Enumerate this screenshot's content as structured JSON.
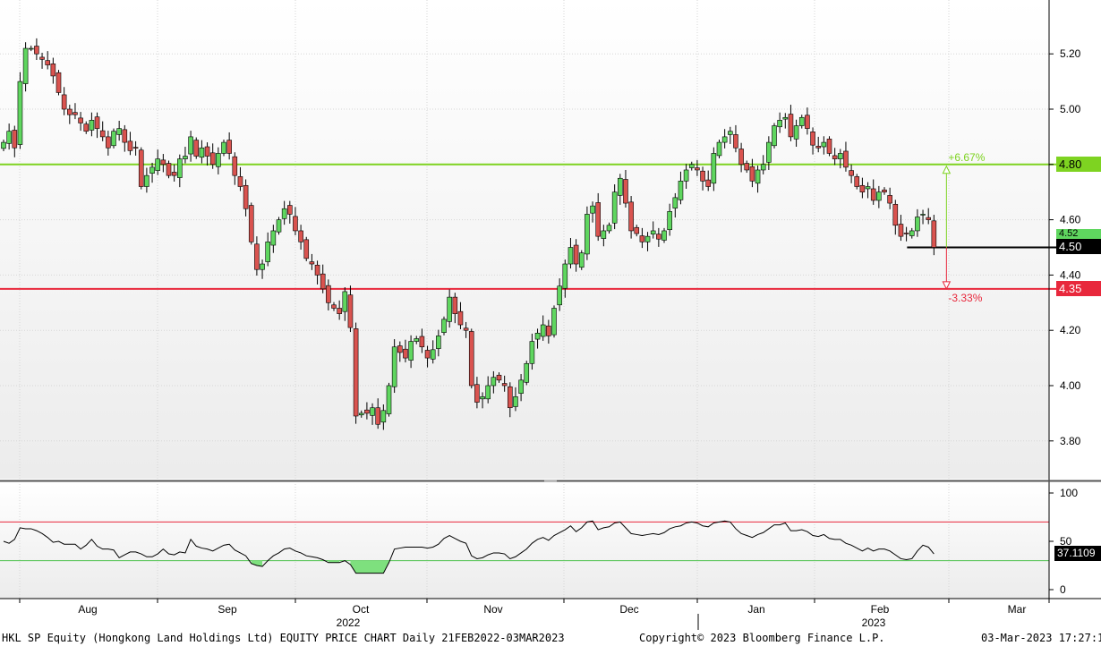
{
  "footer": {
    "left": "HKL SP Equity (Hongkong Land Holdings Ltd) EQUITY PRICE CHART  Daily 21FEB2022-03MAR2023",
    "center": "Copyright© 2023 Bloomberg Finance L.P.",
    "right": "03-Mar-2023 17:27:16"
  },
  "colors": {
    "up": "#5fd65f",
    "down": "#d9534f",
    "green_line": "#7ed321",
    "red_line": "#e8283c"
  },
  "chart_data": [
    {
      "type": "candlestick",
      "title": "",
      "ylim": [
        3.67,
        5.37
      ],
      "y_ticks": [
        3.8,
        4.0,
        4.2,
        4.4,
        4.6,
        4.8,
        5.0,
        5.2
      ],
      "y_tick_labels": [
        "3.80",
        "4.00",
        "4.20",
        "4.40",
        "4.60",
        "4.80",
        "5.00",
        "5.20"
      ],
      "x_month_labels": [
        "Aug",
        "Sep",
        "Oct",
        "Nov",
        "Dec",
        "Jan",
        "Feb",
        "Mar"
      ],
      "x_year_labels": [
        "2022",
        "2023"
      ],
      "grid": true,
      "last_price": "4.50",
      "last_price_value": 4.5,
      "partial_label": "4.52",
      "resistance": {
        "value": 4.8,
        "label": "4.80",
        "pct_label": "+6.67%"
      },
      "support": {
        "value": 4.35,
        "label": "4.35",
        "pct_label": "-3.33%"
      },
      "close": [
        4.88,
        4.92,
        4.86,
        5.1,
        5.22,
        5.22,
        5.2,
        5.18,
        5.16,
        5.12,
        5.06,
        5.0,
        4.98,
        4.98,
        4.95,
        4.92,
        4.96,
        4.93,
        4.9,
        4.86,
        4.92,
        4.93,
        4.88,
        4.85,
        4.86,
        4.72,
        4.76,
        4.79,
        4.82,
        4.8,
        4.76,
        4.76,
        4.82,
        4.83,
        4.9,
        4.83,
        4.86,
        4.83,
        4.8,
        4.84,
        4.88,
        4.84,
        4.76,
        4.72,
        4.64,
        4.52,
        4.42,
        4.44,
        4.52,
        4.56,
        4.6,
        4.64,
        4.62,
        4.56,
        4.52,
        4.46,
        4.44,
        4.4,
        4.35,
        4.3,
        4.28,
        4.26,
        4.34,
        4.21,
        3.89,
        3.9,
        3.9,
        3.92,
        3.86,
        3.91,
        4.0,
        4.14,
        4.12,
        4.1,
        4.16,
        4.17,
        4.14,
        4.1,
        4.13,
        4.18,
        4.24,
        4.32,
        4.26,
        4.22,
        4.2,
        4.0,
        3.94,
        3.96,
        4.0,
        4.03,
        4.02,
        4.0,
        3.92,
        3.96,
        4.02,
        4.08,
        4.16,
        4.19,
        4.22,
        4.18,
        4.28,
        4.36,
        4.44,
        4.5,
        4.44,
        4.48,
        4.62,
        4.65,
        4.54,
        4.56,
        4.58,
        4.7,
        4.75,
        4.66,
        4.56,
        4.55,
        4.52,
        4.54,
        4.56,
        4.53,
        4.56,
        4.63,
        4.68,
        4.74,
        4.78,
        4.8,
        4.78,
        4.74,
        4.72,
        4.84,
        4.88,
        4.9,
        4.92,
        4.86,
        4.8,
        4.78,
        4.74,
        4.78,
        4.8,
        4.88,
        4.94,
        4.96,
        4.97,
        4.9,
        4.94,
        4.97,
        4.93,
        4.87,
        4.86,
        4.88,
        4.84,
        4.82,
        4.84,
        4.79,
        4.76,
        4.72,
        4.7,
        4.72,
        4.67,
        4.7,
        4.7,
        4.66,
        4.58,
        4.54,
        4.55,
        4.56,
        4.61,
        4.62,
        4.6,
        4.5
      ],
      "panel": {
        "name": "RSI",
        "ylim": [
          -5,
          110
        ],
        "y_ticks": [
          0,
          50,
          100
        ],
        "y_tick_labels": [
          "0",
          "50",
          "100"
        ],
        "upper": 70,
        "lower": 30,
        "last_label": "37.1109",
        "values": [
          50,
          48,
          52,
          64,
          63,
          63,
          61,
          58,
          54,
          49,
          50,
          47,
          47,
          47,
          42,
          46,
          52,
          45,
          42,
          42,
          41,
          33,
          36,
          39,
          39,
          37,
          34,
          34,
          37,
          42,
          37,
          36,
          39,
          38,
          52,
          45,
          43,
          42,
          40,
          43,
          46,
          47,
          41,
          38,
          35,
          27,
          25,
          24,
          30,
          35,
          38,
          42,
          43,
          40,
          38,
          35,
          34,
          33,
          31,
          28,
          28,
          28,
          30,
          26,
          17,
          17,
          17,
          17,
          17,
          17,
          28,
          42,
          43,
          44,
          44,
          44,
          44,
          43,
          44,
          47,
          53,
          56,
          53,
          50,
          48,
          35,
          32,
          33,
          36,
          38,
          38,
          37,
          32,
          34,
          38,
          42,
          48,
          52,
          54,
          51,
          56,
          59,
          62,
          66,
          60,
          64,
          70,
          71,
          62,
          64,
          65,
          69,
          70,
          64,
          58,
          57,
          56,
          57,
          58,
          57,
          59,
          63,
          65,
          66,
          69,
          70,
          69,
          66,
          65,
          69,
          70,
          71,
          70,
          63,
          58,
          56,
          54,
          57,
          59,
          63,
          67,
          67,
          69,
          61,
          61,
          62,
          60,
          56,
          55,
          57,
          53,
          52,
          52,
          48,
          46,
          43,
          40,
          43,
          40,
          42,
          42,
          40,
          36,
          32,
          31,
          32,
          40,
          46,
          44,
          37
        ]
      }
    }
  ]
}
